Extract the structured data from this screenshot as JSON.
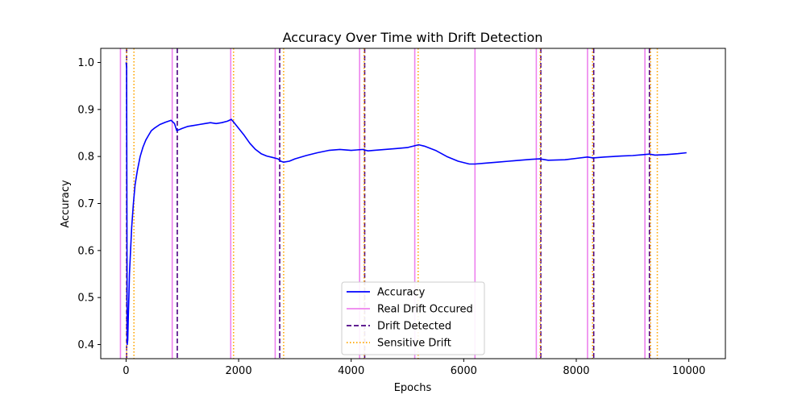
{
  "chart_data": {
    "type": "line",
    "title": "Accuracy Over Time with Drift Detection",
    "xlabel": "Epochs",
    "ylabel": "Accuracy",
    "xlim": [
      -450,
      10650
    ],
    "ylim": [
      0.37,
      1.03
    ],
    "xticks": [
      0,
      2000,
      4000,
      6000,
      8000,
      10000
    ],
    "yticks": [
      0.4,
      0.5,
      0.6,
      0.7,
      0.8,
      0.9,
      1.0
    ],
    "grid": false,
    "legend_position": "lower center",
    "colors": {
      "accuracy": "#0000ff",
      "real_drift": "#ee82ee",
      "drift_detected": "#4b0082",
      "sensitive_drift": "#ffa500"
    },
    "series": [
      {
        "name": "Accuracy",
        "style": "solid",
        "x": [
          0,
          10,
          20,
          30,
          40,
          50,
          60,
          80,
          100,
          130,
          160,
          200,
          250,
          300,
          350,
          400,
          450,
          500,
          600,
          700,
          800,
          860,
          900,
          1000,
          1100,
          1200,
          1300,
          1400,
          1500,
          1600,
          1700,
          1800,
          1870,
          1920,
          2000,
          2100,
          2200,
          2300,
          2400,
          2500,
          2600,
          2700,
          2750,
          2800,
          2900,
          3000,
          3200,
          3400,
          3600,
          3800,
          4000,
          4100,
          4200,
          4300,
          4400,
          4600,
          4800,
          5000,
          5200,
          5300,
          5500,
          5700,
          5900,
          6100,
          6200,
          6400,
          6600,
          6800,
          7000,
          7200,
          7350,
          7500,
          7800,
          8000,
          8200,
          8300,
          8500,
          8800,
          9000,
          9200,
          9300,
          9400,
          9600,
          9800,
          9960
        ],
        "y": [
          1.0,
          0.99,
          0.4,
          0.41,
          0.46,
          0.5,
          0.55,
          0.6,
          0.65,
          0.7,
          0.74,
          0.77,
          0.8,
          0.82,
          0.835,
          0.845,
          0.855,
          0.86,
          0.868,
          0.873,
          0.877,
          0.87,
          0.855,
          0.86,
          0.864,
          0.866,
          0.868,
          0.87,
          0.872,
          0.87,
          0.872,
          0.875,
          0.879,
          0.872,
          0.86,
          0.845,
          0.828,
          0.815,
          0.806,
          0.801,
          0.798,
          0.795,
          0.79,
          0.788,
          0.79,
          0.795,
          0.802,
          0.808,
          0.813,
          0.815,
          0.813,
          0.814,
          0.815,
          0.812,
          0.813,
          0.815,
          0.817,
          0.819,
          0.825,
          0.822,
          0.813,
          0.8,
          0.79,
          0.784,
          0.784,
          0.786,
          0.788,
          0.79,
          0.792,
          0.794,
          0.795,
          0.792,
          0.793,
          0.796,
          0.799,
          0.797,
          0.799,
          0.801,
          0.802,
          0.804,
          0.805,
          0.803,
          0.804,
          0.806,
          0.808
        ]
      },
      {
        "name": "Real Drift Occured",
        "style": "solid",
        "x_positions": [
          -100,
          820,
          1860,
          2650,
          4150,
          5130,
          6200,
          7290,
          8200,
          9220
        ]
      },
      {
        "name": "Drift Detected",
        "style": "dashed",
        "x_positions": [
          10,
          910,
          2730,
          4240,
          7370,
          8310,
          9300
        ]
      },
      {
        "name": "Sensitive Drift",
        "style": "dotted",
        "x_positions": [
          10,
          140,
          1910,
          2800,
          4230,
          5190,
          7360,
          8290,
          9320,
          9440
        ]
      }
    ]
  }
}
